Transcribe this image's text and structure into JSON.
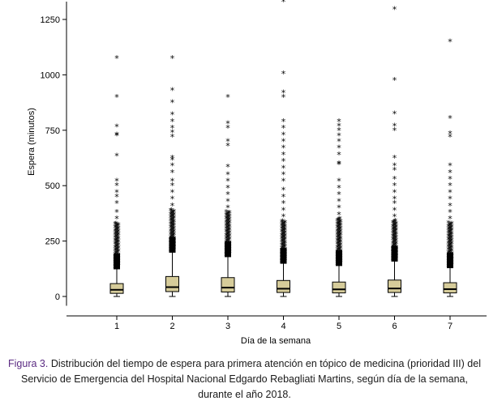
{
  "chart_data": {
    "type": "boxplot",
    "ylabel": "Espera (minutos)",
    "xlabel": "Día de la semana",
    "ylim": [
      -20,
      1330
    ],
    "yticks": [
      0,
      250,
      500,
      750,
      1000,
      1250
    ],
    "ytick_labels": [
      "0",
      "250",
      "500",
      "750",
      "1000",
      "1250"
    ],
    "categories": [
      "1",
      "2",
      "3",
      "4",
      "5",
      "6",
      "7"
    ],
    "box_color": "#d6cc9a",
    "boxes": [
      {
        "q1": 14,
        "median": 30,
        "q3": 58,
        "whisker_low": 0,
        "whisker_high": 125,
        "dense_to": 330,
        "outliers": [
          350,
          380,
          420,
          450,
          470,
          500,
          520,
          635,
          725,
          730,
          765,
          900,
          1075
        ]
      },
      {
        "q1": 22,
        "median": 42,
        "q3": 90,
        "whisker_low": 0,
        "whisker_high": 200,
        "dense_to": 390,
        "outliers": [
          410,
          440,
          470,
          500,
          520,
          560,
          590,
          615,
          625,
          720,
          740,
          760,
          790,
          820,
          875,
          930,
          1075
        ]
      },
      {
        "q1": 20,
        "median": 40,
        "q3": 85,
        "whisker_low": 0,
        "whisker_high": 180,
        "dense_to": 380,
        "outliers": [
          400,
          430,
          460,
          490,
          520,
          550,
          585,
          680,
          700,
          760,
          780,
          900
        ]
      },
      {
        "q1": 18,
        "median": 35,
        "q3": 72,
        "whisker_low": 0,
        "whisker_high": 150,
        "dense_to": 340,
        "outliers": [
          360,
          390,
          420,
          450,
          480,
          520,
          550,
          580,
          610,
          640,
          670,
          700,
          730,
          760,
          790,
          900,
          920,
          1005,
          1330
        ]
      },
      {
        "q1": 16,
        "median": 32,
        "q3": 65,
        "whisker_low": 0,
        "whisker_high": 140,
        "dense_to": 350,
        "outliers": [
          370,
          400,
          430,
          460,
          490,
          520,
          595,
          600,
          640,
          670,
          700,
          725,
          750,
          770,
          790
        ]
      },
      {
        "q1": 18,
        "median": 36,
        "q3": 74,
        "whisker_low": 0,
        "whisker_high": 160,
        "dense_to": 340,
        "outliers": [
          360,
          390,
          420,
          440,
          470,
          500,
          530,
          570,
          590,
          625,
          750,
          770,
          825,
          975,
          1295
        ]
      },
      {
        "q1": 16,
        "median": 33,
        "q3": 62,
        "whisker_low": 0,
        "whisker_high": 130,
        "dense_to": 330,
        "outliers": [
          350,
          380,
          410,
          440,
          470,
          500,
          530,
          560,
          590,
          720,
          735,
          805,
          1150
        ]
      }
    ]
  },
  "caption": {
    "label": "Figura 3.",
    "text": "Distribución del tiempo de espera para primera atención en tópico de medicina (prioridad III) del Servicio de Emergencia del Hospital Nacional Edgardo Rebagliati Martins, según día de la semana, durante el año 2018."
  }
}
